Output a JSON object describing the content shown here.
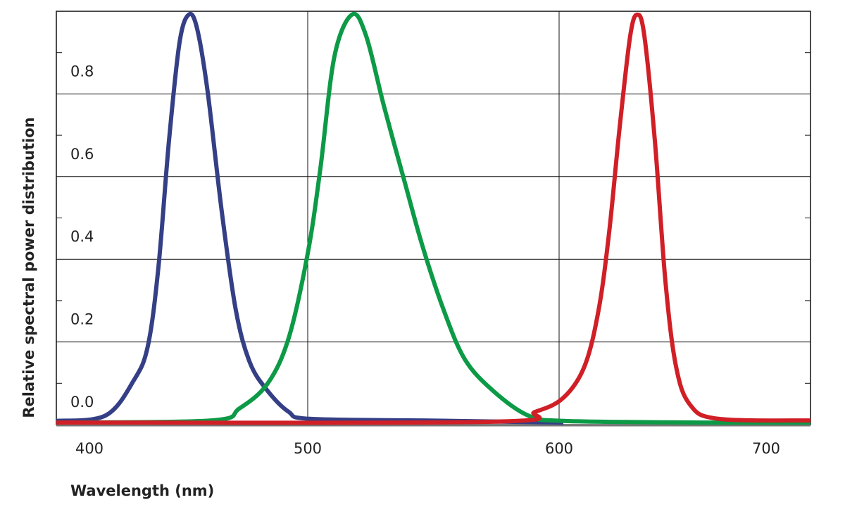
{
  "chart_data": {
    "type": "line",
    "x_label": "Wavelength (nm)",
    "y_label": "Relative spectral power distribution",
    "xlim": [
      400,
      700
    ],
    "xticks": [
      400,
      500,
      600,
      700
    ],
    "ylim": [
      0,
      1
    ],
    "yticks": [
      {
        "value": 0,
        "label": "0.0"
      },
      0.2,
      0.4,
      0.6,
      0.8
    ],
    "minor_yticks": [
      0.1,
      0.3,
      0.5,
      0.7,
      0.9
    ],
    "grid": true,
    "series": [
      {
        "color": "#343f86",
        "x": [
          400,
          419.6,
          430.8,
          436.4,
          440.6,
          444.8,
          449,
          452.7,
          456,
          460.2,
          465.8,
          471.4,
          477,
          484,
          492.4,
          500.8,
          545.7,
          601.7
        ],
        "values": [
          0.009,
          0.022,
          0.107,
          0.19,
          0.38,
          0.686,
          0.924,
          0.992,
          0.958,
          0.805,
          0.516,
          0.277,
          0.15,
          0.082,
          0.031,
          0.014,
          0.01,
          0.005
        ]
      },
      {
        "color": "#0c9a46",
        "x": [
          400,
          461.6,
          472.8,
          484,
          492.4,
          500,
          505,
          510.6,
          517.6,
          523.2,
          530.3,
          538.7,
          545.7,
          554.1,
          562.5,
          573.7,
          587.7,
          601.7,
          657.7,
          700
        ],
        "values": [
          0.005,
          0.01,
          0.039,
          0.099,
          0.209,
          0.414,
          0.618,
          0.89,
          0.992,
          0.941,
          0.771,
          0.584,
          0.431,
          0.277,
          0.158,
          0.082,
          0.022,
          0.009,
          0.005,
          0.005
        ]
      },
      {
        "color": "#d01f26",
        "x": [
          400,
          573.7,
          590.5,
          601.7,
          610.1,
          615.7,
          619.9,
          624.1,
          628.3,
          631.1,
          633.9,
          638.1,
          642.3,
          646.5,
          652.1,
          663.3,
          700
        ],
        "values": [
          0.005,
          0.007,
          0.031,
          0.065,
          0.141,
          0.277,
          0.465,
          0.72,
          0.941,
          0.992,
          0.941,
          0.686,
          0.346,
          0.141,
          0.048,
          0.014,
          0.01
        ]
      }
    ]
  }
}
